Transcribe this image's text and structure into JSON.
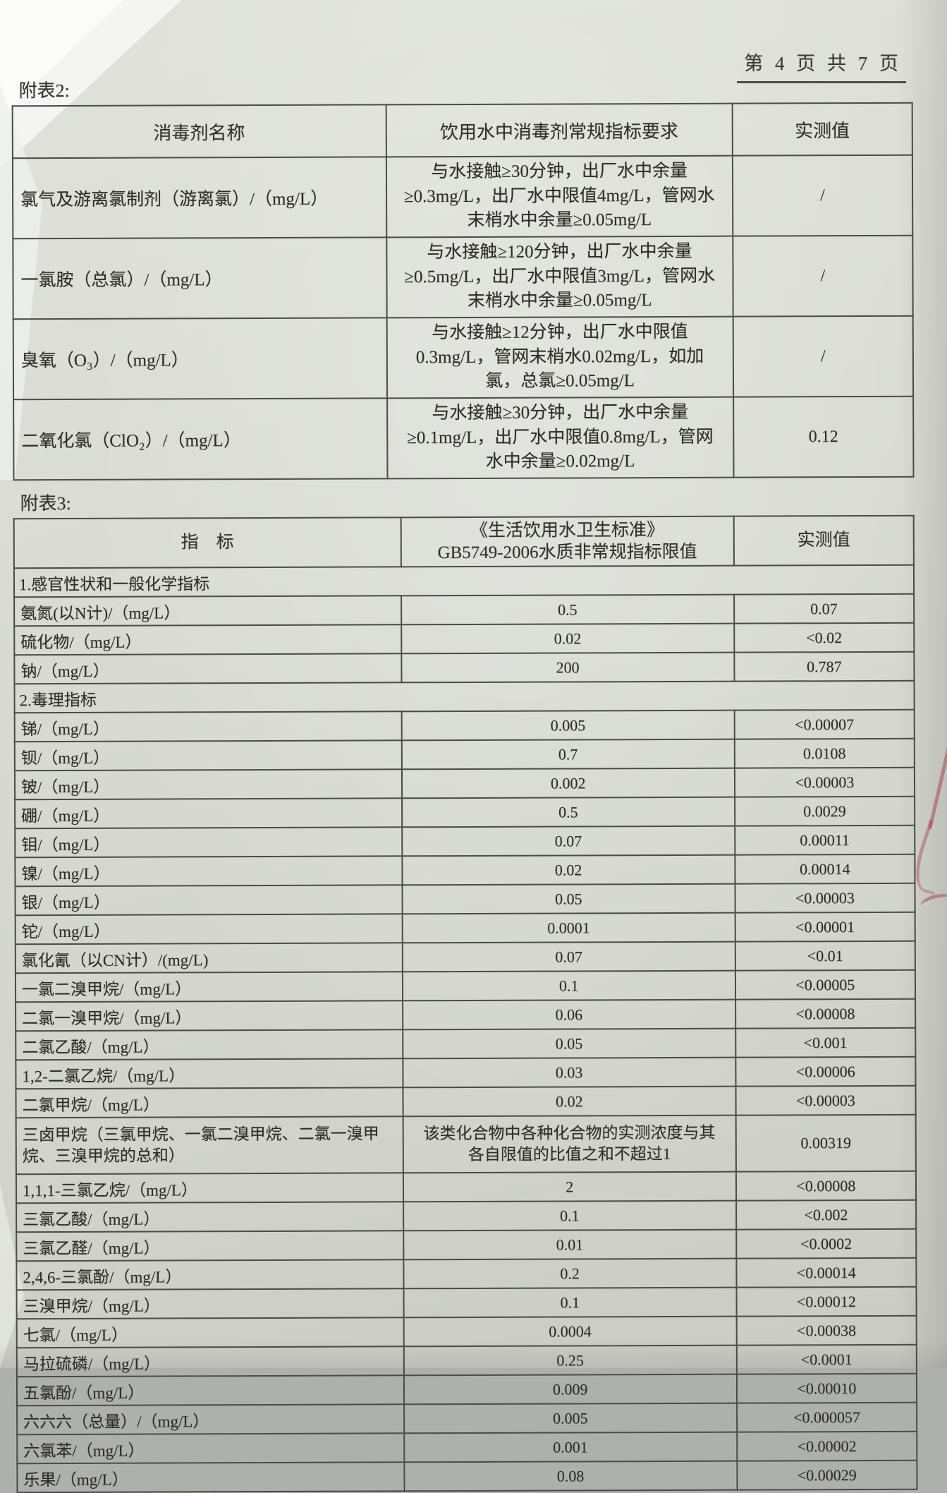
{
  "page_header": {
    "page_indicator": "第 4 页  共 7 页"
  },
  "table2": {
    "caption": "附表2:",
    "headers": [
      "消毒剂名称",
      "饮用水中消毒剂常规指标要求",
      "实测值"
    ],
    "rows": [
      {
        "name": "氯气及游离氯制剂（游离氯）/（mg/L）",
        "requirement": "与水接触≥30分钟，出厂水中余量≥0.3mg/L，出厂水中限值4mg/L，管网水末梢水中余量≥0.05mg/L",
        "measured": "/"
      },
      {
        "name": "一氯胺（总氯）/（mg/L）",
        "requirement": "与水接触≥120分钟，出厂水中余量≥0.5mg/L，出厂水中限值3mg/L，管网水末梢水中余量≥0.05mg/L",
        "measured": "/"
      },
      {
        "name": "臭氧（O₃）/（mg/L）",
        "requirement": "与水接触≥12分钟，出厂水中限值0.3mg/L，管网末梢水0.02mg/L，如加氯，总氯≥0.05mg/L",
        "measured": "/"
      },
      {
        "name": "二氧化氯（ClO₂）/（mg/L）",
        "requirement": "与水接触≥30分钟，出厂水中余量≥0.1mg/L，出厂水中限值0.8mg/L，管网水中余量≥0.02mg/L",
        "measured": "0.12"
      }
    ]
  },
  "table3": {
    "caption": "附表3:",
    "headers": {
      "indicator": "指　标",
      "standard_line1": "《生活饮用水卫生标准》",
      "standard_line2": "GB5749-2006水质非常规指标限值",
      "measured": "实测值"
    },
    "rows": [
      {
        "type": "section",
        "label": "1.感官性状和一般化学指标"
      },
      {
        "type": "data",
        "name": "氨氮(以N计)/（mg/L）",
        "limit": "0.5",
        "measured": "0.07"
      },
      {
        "type": "data",
        "name": "硫化物/（mg/L）",
        "limit": "0.02",
        "measured": "<0.02"
      },
      {
        "type": "data",
        "name": "钠/（mg/L）",
        "limit": "200",
        "measured": "0.787"
      },
      {
        "type": "section",
        "label": "2.毒理指标"
      },
      {
        "type": "data",
        "name": "锑/（mg/L）",
        "limit": "0.005",
        "measured": "<0.00007"
      },
      {
        "type": "data",
        "name": "钡/（mg/L）",
        "limit": "0.7",
        "measured": "0.0108"
      },
      {
        "type": "data",
        "name": "铍/（mg/L）",
        "limit": "0.002",
        "measured": "<0.00003"
      },
      {
        "type": "data",
        "name": "硼/（mg/L）",
        "limit": "0.5",
        "measured": "0.0029"
      },
      {
        "type": "data",
        "name": "钼/（mg/L）",
        "limit": "0.07",
        "measured": "0.00011"
      },
      {
        "type": "data",
        "name": "镍/（mg/L）",
        "limit": "0.02",
        "measured": "0.00014"
      },
      {
        "type": "data",
        "name": "银/（mg/L）",
        "limit": "0.05",
        "measured": "<0.00003"
      },
      {
        "type": "data",
        "name": "铊/（mg/L）",
        "limit": "0.0001",
        "measured": "<0.00001"
      },
      {
        "type": "data",
        "name": "氯化氰（以CN计）/(mg/L)",
        "limit": "0.07",
        "measured": "<0.01"
      },
      {
        "type": "data",
        "name": "一氯二溴甲烷/（mg/L）",
        "limit": "0.1",
        "measured": "<0.00005"
      },
      {
        "type": "data",
        "name": "二氯一溴甲烷/（mg/L）",
        "limit": "0.06",
        "measured": "<0.00008"
      },
      {
        "type": "data",
        "name": "二氯乙酸/（mg/L）",
        "limit": "0.05",
        "measured": "<0.001"
      },
      {
        "type": "data",
        "name": "1,2-二氯乙烷/（mg/L）",
        "limit": "0.03",
        "measured": "<0.00006"
      },
      {
        "type": "data",
        "name": "二氯甲烷/（mg/L）",
        "limit": "0.02",
        "measured": "<0.00003"
      },
      {
        "type": "data",
        "tall": true,
        "name": "三卤甲烷（三氯甲烷、一氯二溴甲烷、二氯一溴甲烷、三溴甲烷的总和）",
        "limit": "该类化合物中各种化合物的实测浓度与其各自限值的比值之和不超过1",
        "measured": "0.00319"
      },
      {
        "type": "data",
        "name": "1,1,1-三氯乙烷/（mg/L）",
        "limit": "2",
        "measured": "<0.00008"
      },
      {
        "type": "data",
        "name": "三氯乙酸/（mg/L）",
        "limit": "0.1",
        "measured": "<0.002"
      },
      {
        "type": "data",
        "name": "三氯乙醛/（mg/L）",
        "limit": "0.01",
        "measured": "<0.0002"
      },
      {
        "type": "data",
        "name": "2,4,6-三氯酚/（mg/L）",
        "limit": "0.2",
        "measured": "<0.00014"
      },
      {
        "type": "data",
        "name": "三溴甲烷/（mg/L）",
        "limit": "0.1",
        "measured": "<0.00012"
      },
      {
        "type": "data",
        "name": "七氯/（mg/L）",
        "limit": "0.0004",
        "measured": "<0.00038"
      },
      {
        "type": "data",
        "name": "马拉硫磷/（mg/L）",
        "limit": "0.25",
        "measured": "<0.0001"
      },
      {
        "type": "data",
        "name": "五氯酚/（mg/L）",
        "limit": "0.009",
        "measured": "<0.00010"
      },
      {
        "type": "data",
        "name": "六六六（总量）/（mg/L）",
        "limit": "0.005",
        "measured": "<0.000057"
      },
      {
        "type": "data",
        "name": "六氯苯/（mg/L）",
        "limit": "0.001",
        "measured": "<0.00002"
      },
      {
        "type": "data",
        "name": "乐果/（mg/L）",
        "limit": "0.08",
        "measured": "<0.00029"
      }
    ]
  }
}
